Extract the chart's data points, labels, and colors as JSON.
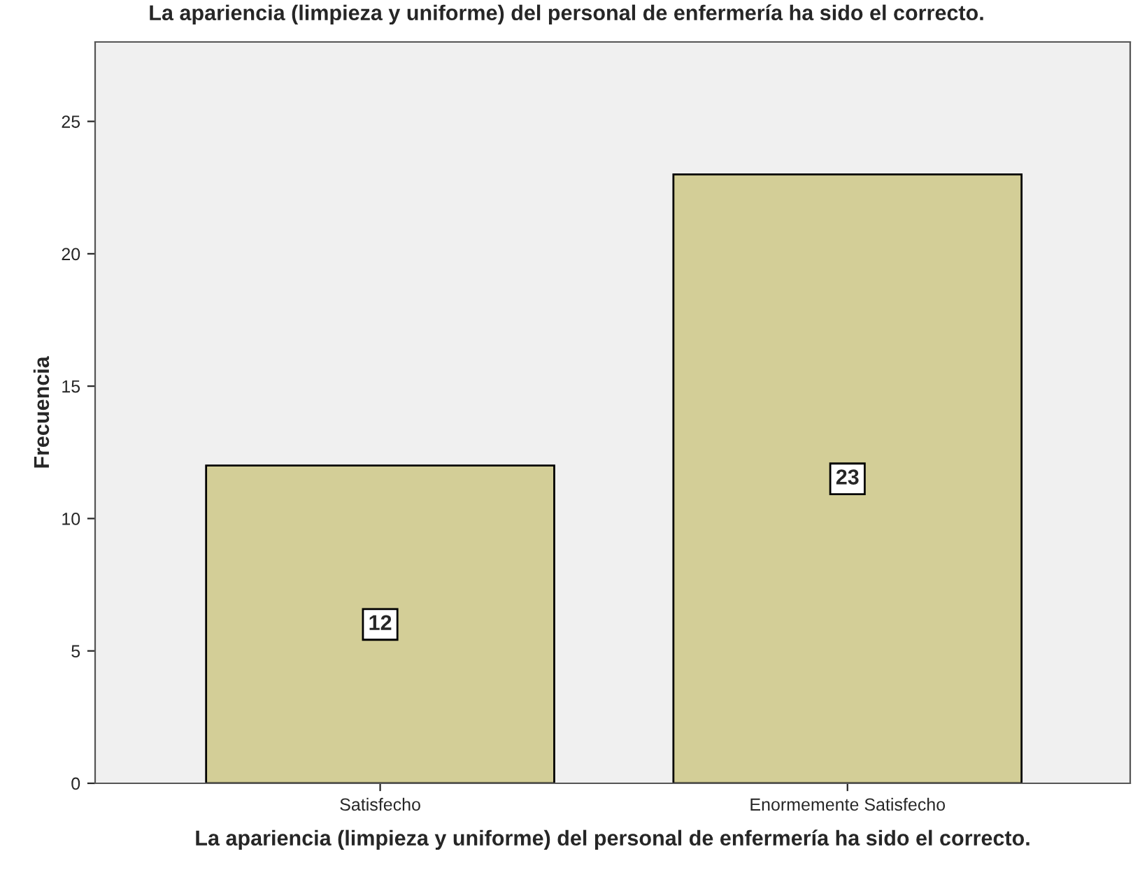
{
  "chart_data": {
    "type": "bar",
    "title": "La apariencia (limpieza y uniforme) del personal de enfermería ha sido el correcto.",
    "xlabel": "La apariencia (limpieza y uniforme) del personal de enfermería ha sido el correcto.",
    "ylabel": "Frecuencia",
    "categories": [
      "Satisfecho",
      "Enormemente Satisfecho"
    ],
    "values": [
      12,
      23
    ],
    "color": "#d3ce97",
    "ylim": [
      0,
      28
    ],
    "yticks": [
      0,
      5,
      10,
      15,
      20,
      25
    ],
    "data_labels": true,
    "grid": false,
    "legend": false
  }
}
